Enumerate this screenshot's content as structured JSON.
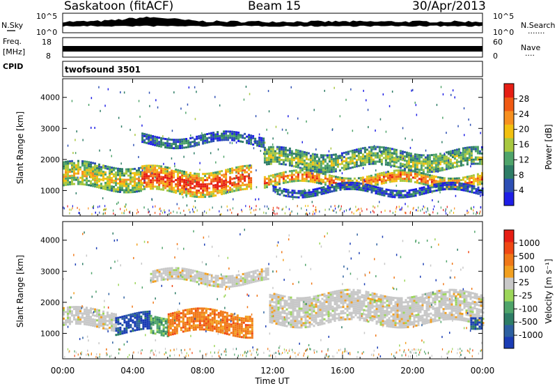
{
  "header": {
    "station": "Saskatoon (fitACF)",
    "beam": "Beam 15",
    "date": "30/Apr/2013"
  },
  "noise_panel": {
    "left_label": "N.Sky",
    "left_ticks": [
      "10^5",
      "10^0"
    ],
    "right_ticks": [
      "10^5",
      "10^0"
    ],
    "right_label": "N.Search",
    "right_dots": "......."
  },
  "freq_panel": {
    "label_line1": "Freq.",
    "label_line2": "[MHz]",
    "left_ticks": [
      {
        "value": 18,
        "label": "18"
      },
      {
        "value": 8,
        "label": "8"
      }
    ],
    "right_ticks": [
      {
        "value": 60,
        "label": "60"
      },
      {
        "value": 0,
        "label": "0"
      }
    ],
    "right_label": "Nave",
    "right_dots": "...."
  },
  "cpid": {
    "label": "CPID",
    "value": "twofsound 3501"
  },
  "chart_data": [
    {
      "type": "heatmap",
      "name": "power",
      "ylabel": "Slant Range [km]",
      "yticks": [
        1000,
        2000,
        3000,
        4000
      ],
      "ylim": [
        180,
        4600
      ],
      "xlim": [
        0,
        24
      ],
      "colorbar_label": "Power [dB]",
      "colorbar_ticks": [
        "4",
        "8",
        "12",
        "16",
        "20",
        "24",
        "28"
      ],
      "colorbar_colors": [
        "#1e1ee6",
        "#2d4fb4",
        "#2e7d66",
        "#4fa46a",
        "#a8c840",
        "#f2c010",
        "#f79020",
        "#f05a14",
        "#e61e14"
      ],
      "bands": [
        {
          "x": [
            0,
            4.5
          ],
          "range": [
            1050,
            1850
          ],
          "intensity": 0.55
        },
        {
          "x": [
            4.5,
            10.8
          ],
          "range": [
            950,
            1700
          ],
          "intensity": 0.85
        },
        {
          "x": [
            4.5,
            11.5
          ],
          "range": [
            2500,
            2800
          ],
          "intensity": 0.25
        },
        {
          "x": [
            11.5,
            24
          ],
          "range": [
            1200,
            1550
          ],
          "intensity": 0.75
        },
        {
          "x": [
            11.5,
            24
          ],
          "range": [
            1700,
            2300
          ],
          "intensity": 0.45
        },
        {
          "x": [
            12,
            24
          ],
          "range": [
            900,
            1150
          ],
          "intensity": 0.2
        }
      ]
    },
    {
      "type": "heatmap",
      "name": "velocity",
      "ylabel": "Slant Range [km]",
      "yticks": [
        1000,
        2000,
        3000,
        4000
      ],
      "ylim": [
        180,
        4600
      ],
      "xlim": [
        0,
        24
      ],
      "colorbar_label": "Velocity [m s⁻¹]",
      "colorbar_ticks": [
        "1000",
        "500",
        "100",
        "25",
        "-25",
        "-100",
        "-500",
        "-1000"
      ],
      "colorbar_colors": [
        "#1a3cb4",
        "#2d60a0",
        "#2e7d66",
        "#4fa46a",
        "#9cd65a",
        "#c8c8c8",
        "#f2a020",
        "#f07818",
        "#f04814",
        "#e61e14"
      ],
      "bands": [
        {
          "x": [
            0,
            3.0
          ],
          "range": [
            1200,
            1750
          ],
          "class": "grey"
        },
        {
          "x": [
            3.0,
            5.0
          ],
          "range": [
            1000,
            1600
          ],
          "class": "blue"
        },
        {
          "x": [
            5.0,
            6.0
          ],
          "range": [
            1000,
            1600
          ],
          "class": "green"
        },
        {
          "x": [
            6.0,
            10.8
          ],
          "range": [
            1000,
            1700
          ],
          "class": "orange"
        },
        {
          "x": [
            5.0,
            11.8
          ],
          "range": [
            2600,
            3000
          ],
          "class": "grey"
        },
        {
          "x": [
            11.8,
            24
          ],
          "range": [
            1300,
            2300
          ],
          "class": "grey"
        },
        {
          "x": [
            23.3,
            24
          ],
          "range": [
            1300,
            1650
          ],
          "class": "blue"
        }
      ]
    }
  ],
  "x_axis": {
    "ticks": [
      {
        "value": 0,
        "label": "00:00"
      },
      {
        "value": 4,
        "label": "04:00"
      },
      {
        "value": 8,
        "label": "08:00"
      },
      {
        "value": 12,
        "label": "12:00"
      },
      {
        "value": 16,
        "label": "16:00"
      },
      {
        "value": 20,
        "label": "20:00"
      },
      {
        "value": 24,
        "label": "00:00"
      }
    ],
    "label": "Time UT"
  }
}
